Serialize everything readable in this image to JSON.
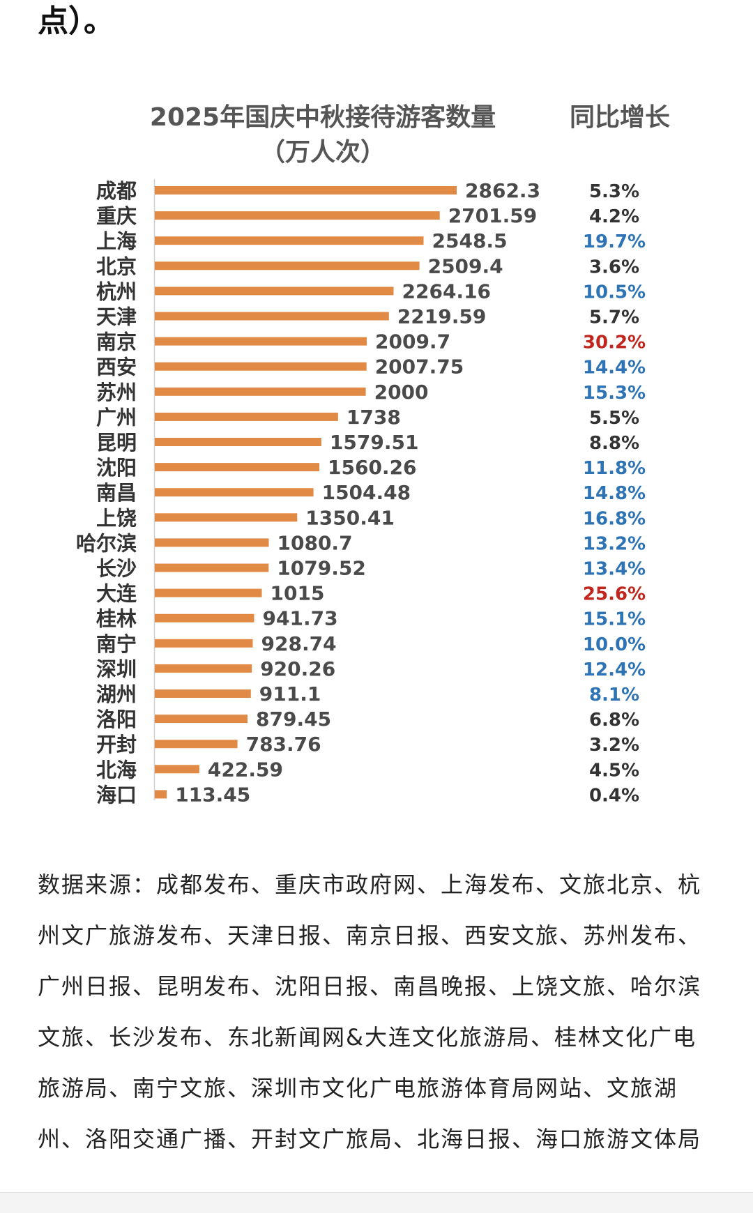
{
  "header_fragment": "点）。",
  "chart_data": {
    "type": "bar",
    "title": "2025年国庆中秋接待游客数量",
    "subtitle": "（万人次）",
    "growth_title": "同比增长",
    "categories": [
      "成都",
      "重庆",
      "上海",
      "北京",
      "杭州",
      "天津",
      "南京",
      "西安",
      "苏州",
      "广州",
      "昆明",
      "沈阳",
      "南昌",
      "上饶",
      "哈尔滨",
      "长沙",
      "大连",
      "桂林",
      "南宁",
      "深圳",
      "湖州",
      "洛阳",
      "开封",
      "北海",
      "海口"
    ],
    "values": [
      2862.3,
      2701.59,
      2548.5,
      2509.4,
      2264.16,
      2219.59,
      2009.7,
      2007.75,
      2000,
      1738,
      1579.51,
      1560.26,
      1504.48,
      1350.41,
      1080.7,
      1079.52,
      1015,
      941.73,
      928.74,
      920.26,
      911.1,
      879.45,
      783.76,
      422.59,
      113.45
    ],
    "value_labels": [
      "2862.3",
      "2701.59",
      "2548.5",
      "2509.4",
      "2264.16",
      "2219.59",
      "2009.7",
      "2007.75",
      "2000",
      "1738",
      "1579.51",
      "1560.26",
      "1504.48",
      "1350.41",
      "1080.7",
      "1079.52",
      "1015",
      "941.73",
      "928.74",
      "920.26",
      "911.1",
      "879.45",
      "783.76",
      "422.59",
      "113.45"
    ],
    "growth": [
      "5.3%",
      "4.2%",
      "19.7%",
      "3.6%",
      "10.5%",
      "5.7%",
      "30.2%",
      "14.4%",
      "15.3%",
      "5.5%",
      "8.8%",
      "11.8%",
      "14.8%",
      "16.8%",
      "13.2%",
      "13.4%",
      "25.6%",
      "15.1%",
      "10.0%",
      "12.4%",
      "8.1%",
      "6.8%",
      "3.2%",
      "4.5%",
      "0.4%"
    ],
    "growth_colors": [
      "#333333",
      "#333333",
      "#2e74b5",
      "#333333",
      "#2e74b5",
      "#333333",
      "#c0261d",
      "#2e74b5",
      "#2e74b5",
      "#333333",
      "#333333",
      "#2e74b5",
      "#2e74b5",
      "#2e74b5",
      "#2e74b5",
      "#2e74b5",
      "#c0261d",
      "#2e74b5",
      "#2e74b5",
      "#2e74b5",
      "#2e74b5",
      "#333333",
      "#333333",
      "#333333",
      "#333333"
    ],
    "bar_color": "#e08a45",
    "xlim": [
      0,
      2862.3
    ],
    "grid": false
  },
  "source_note": "数据来源：成都发布、重庆市政府网、上海发布、文旅北京、杭州文广旅游发布、天津日报、南京日报、西安文旅、苏州发布、广州日报、昆明发布、沈阳日报、南昌晚报、上饶文旅、哈尔滨文旅、长沙发布、东北新闻网&大连文化旅游局、桂林文化广电旅游局、南宁文旅、深圳市文化广电旅游体育局网站、文旅湖州、洛阳交通广播、开封文广旅局、北海日报、海口旅游文体局"
}
